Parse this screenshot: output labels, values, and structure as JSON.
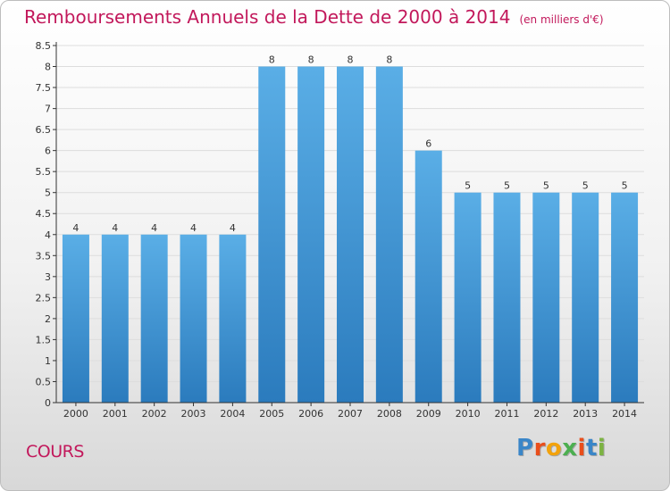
{
  "header": {
    "title": "Remboursements Annuels de la Dette de 2000 à 2014",
    "unit": "(en milliers d'€)"
  },
  "footer": {
    "city": "COURS",
    "logo_text": "Proxiti"
  },
  "colors": {
    "title": "#c2185b",
    "bar_top": "#5aaee6",
    "bar_bottom": "#2b7bbd",
    "axis": "#333333",
    "grid": "#dddddd"
  },
  "chart_data": {
    "type": "bar",
    "title": "Remboursements Annuels de la Dette de 2000 à 2014",
    "categories": [
      "2000",
      "2001",
      "2002",
      "2003",
      "2004",
      "2005",
      "2006",
      "2007",
      "2008",
      "2009",
      "2010",
      "2011",
      "2012",
      "2013",
      "2014"
    ],
    "values": [
      4,
      4,
      4,
      4,
      4,
      8,
      8,
      8,
      8,
      6,
      5,
      5,
      5,
      5,
      5
    ],
    "data_labels": [
      "4",
      "4",
      "4",
      "4",
      "4",
      "8",
      "8",
      "8",
      "8",
      "6",
      "5",
      "5",
      "5",
      "5",
      "5"
    ],
    "ylim": [
      0,
      8.5
    ],
    "yticks": [
      "0",
      "0.5",
      "1",
      "1.5",
      "2",
      "2.5",
      "3",
      "3.5",
      "4",
      "4.5",
      "5",
      "5.5",
      "6",
      "6.5",
      "7",
      "7.5",
      "8",
      "8.5"
    ],
    "ytick_values": [
      0,
      0.5,
      1,
      1.5,
      2,
      2.5,
      3,
      3.5,
      4,
      4.5,
      5,
      5.5,
      6,
      6.5,
      7,
      7.5,
      8,
      8.5
    ],
    "grid": true,
    "xlabel": "",
    "ylabel": ""
  }
}
